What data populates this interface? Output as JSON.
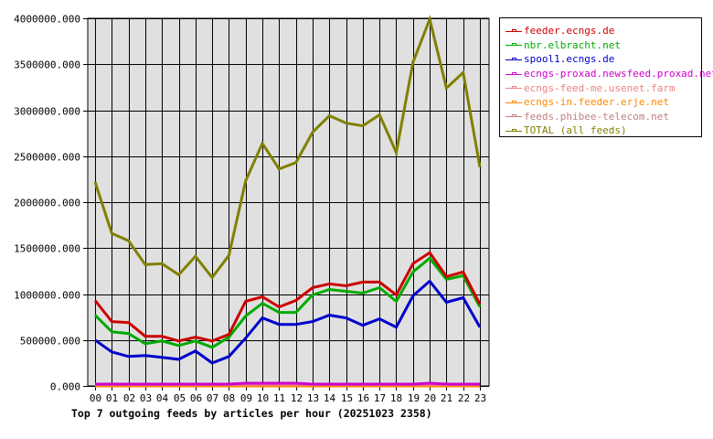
{
  "chart_data": {
    "type": "line",
    "title": "Top 7 outgoing feeds by articles per hour (20251023 2358)",
    "xlabel": "",
    "ylabel": "",
    "ylim": [
      0,
      4000000
    ],
    "yticks": [
      "0.000",
      "500000.000",
      "1000000.000",
      "1500000.000",
      "2000000.000",
      "2500000.000",
      "3000000.000",
      "3500000.000",
      "4000000.000"
    ],
    "grid": true,
    "legend_position": "right",
    "categories": [
      "00",
      "01",
      "02",
      "03",
      "04",
      "05",
      "06",
      "07",
      "08",
      "09",
      "10",
      "11",
      "12",
      "13",
      "14",
      "15",
      "16",
      "17",
      "18",
      "19",
      "20",
      "21",
      "22",
      "23"
    ],
    "series": [
      {
        "name": "feeder.ecngs.de",
        "color": "#cc0000",
        "values": [
          930000,
          700000,
          690000,
          540000,
          540000,
          490000,
          530000,
          490000,
          560000,
          920000,
          970000,
          860000,
          930000,
          1070000,
          1110000,
          1090000,
          1130000,
          1130000,
          990000,
          1330000,
          1450000,
          1190000,
          1240000,
          890000
        ]
      },
      {
        "name": "nbr.elbracht.net",
        "color": "#00aa00",
        "values": [
          770000,
          590000,
          570000,
          460000,
          490000,
          440000,
          490000,
          420000,
          530000,
          760000,
          900000,
          800000,
          800000,
          990000,
          1050000,
          1030000,
          1010000,
          1070000,
          920000,
          1240000,
          1390000,
          1160000,
          1200000,
          860000
        ]
      },
      {
        "name": "spool1.ecngs.de",
        "color": "#0000cc",
        "values": [
          500000,
          370000,
          320000,
          330000,
          310000,
          290000,
          380000,
          250000,
          320000,
          520000,
          740000,
          670000,
          670000,
          700000,
          770000,
          740000,
          660000,
          730000,
          640000,
          980000,
          1140000,
          910000,
          960000,
          640000
        ]
      },
      {
        "name": "ecngs-proxad.newsfeed.proxad.net",
        "color": "#cc00cc",
        "values": [
          20000,
          20000,
          20000,
          20000,
          20000,
          20000,
          20000,
          20000,
          20000,
          30000,
          30000,
          30000,
          30000,
          20000,
          20000,
          20000,
          20000,
          20000,
          20000,
          20000,
          30000,
          20000,
          20000,
          20000
        ]
      },
      {
        "name": "ecngs-feed-me.usenet.farm",
        "color": "#f08080",
        "values": [
          15000,
          15000,
          15000,
          15000,
          15000,
          15000,
          15000,
          15000,
          15000,
          15000,
          15000,
          15000,
          15000,
          15000,
          15000,
          15000,
          15000,
          15000,
          15000,
          15000,
          15000,
          15000,
          15000,
          15000
        ]
      },
      {
        "name": "ecngs-in.feeder.erje.net",
        "color": "#ff8800",
        "values": [
          0,
          0,
          0,
          0,
          0,
          0,
          0,
          0,
          0,
          0,
          0,
          0,
          0,
          0,
          0,
          0,
          0,
          0,
          0,
          0,
          0,
          0,
          0,
          0
        ]
      },
      {
        "name": "feeds.phibee-telecom.net",
        "color": "#c08080",
        "values": [
          10000,
          10000,
          10000,
          10000,
          10000,
          10000,
          10000,
          10000,
          10000,
          10000,
          10000,
          10000,
          10000,
          10000,
          10000,
          10000,
          10000,
          10000,
          10000,
          10000,
          10000,
          10000,
          10000,
          10000
        ]
      },
      {
        "name": "TOTAL (all feeds)",
        "color": "#808000",
        "values": [
          2220000,
          1660000,
          1580000,
          1320000,
          1330000,
          1210000,
          1410000,
          1180000,
          1420000,
          2230000,
          2640000,
          2360000,
          2430000,
          2760000,
          2940000,
          2860000,
          2830000,
          2950000,
          2540000,
          3520000,
          3990000,
          3240000,
          3410000,
          2380000
        ]
      }
    ]
  },
  "legend": {
    "items": [
      {
        "label": "feeder.ecngs.de",
        "color": "#cc0000"
      },
      {
        "label": "nbr.elbracht.net",
        "color": "#00aa00"
      },
      {
        "label": "spool1.ecngs.de",
        "color": "#0000cc"
      },
      {
        "label": "ecngs-proxad.newsfeed.proxad.net",
        "color": "#cc00cc"
      },
      {
        "label": "ecngs-feed-me.usenet.farm",
        "color": "#f08080"
      },
      {
        "label": "ecngs-in.feeder.erje.net",
        "color": "#ff8800"
      },
      {
        "label": "feeds.phibee-telecom.net",
        "color": "#c08080"
      },
      {
        "label": "TOTAL (all feeds)",
        "color": "#808000"
      }
    ]
  },
  "caption": "Top 7 outgoing feeds by articles per hour (20251023 2358)"
}
